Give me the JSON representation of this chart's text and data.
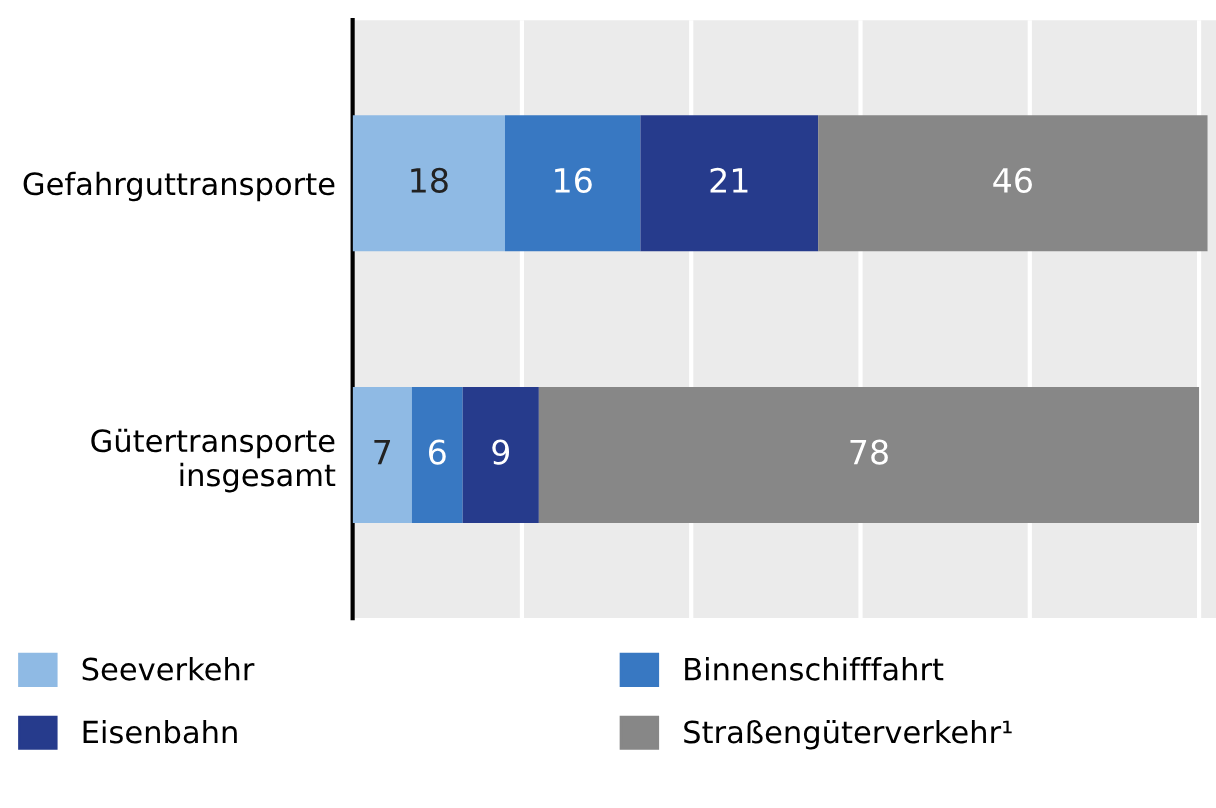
{
  "chart_data": {
    "type": "bar",
    "orientation": "horizontal",
    "stacked": true,
    "categories": [
      "Gefahrguttransporte",
      "Gütertransporte\ninsgesamt"
    ],
    "series": [
      {
        "name": "Seeverkehr",
        "color": "#8fbae4",
        "values": [
          18,
          7
        ]
      },
      {
        "name": "Binnenschifffahrt",
        "color": "#3878c2",
        "values": [
          16,
          6
        ]
      },
      {
        "name": "Eisenbahn",
        "color": "#263b8c",
        "values": [
          21,
          9
        ]
      },
      {
        "name": "Straßengüterverkehr¹",
        "color": "#878787",
        "values": [
          46,
          78
        ]
      }
    ],
    "xlim": [
      0,
      102
    ],
    "xticks": [
      {
        "value": 0,
        "label": null
      },
      {
        "value": 20,
        "label": null
      },
      {
        "value": 40,
        "label": null
      },
      {
        "value": 60,
        "label": null
      },
      {
        "value": 80,
        "label": null
      },
      {
        "value": 100,
        "label": null
      }
    ],
    "grid": "x",
    "tick_labels": "y",
    "data_labels": true,
    "legend": "bottom"
  }
}
